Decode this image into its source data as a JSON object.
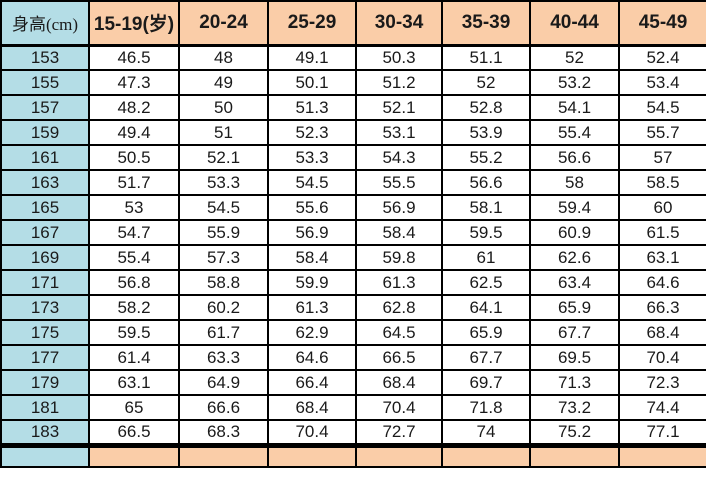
{
  "colors": {
    "header_bg": "#FACDA8",
    "height_col_bg": "#B4DDE6",
    "border": "#000000",
    "cell_bg": "#FFFFFF",
    "text": "#1A1A1A"
  },
  "table": {
    "header": [
      "身高(cm)",
      "15-19(岁)",
      "20-24",
      "25-29",
      "30-34",
      "35-39",
      "40-44",
      "45-49"
    ],
    "rows": [
      {
        "height": "153",
        "values": [
          "46.5",
          "48",
          "49.1",
          "50.3",
          "51.1",
          "52",
          "52.4"
        ]
      },
      {
        "height": "155",
        "values": [
          "47.3",
          "49",
          "50.1",
          "51.2",
          "52",
          "53.2",
          "53.4"
        ]
      },
      {
        "height": "157",
        "values": [
          "48.2",
          "50",
          "51.3",
          "52.1",
          "52.8",
          "54.1",
          "54.5"
        ]
      },
      {
        "height": "159",
        "values": [
          "49.4",
          "51",
          "52.3",
          "53.1",
          "53.9",
          "55.4",
          "55.7"
        ]
      },
      {
        "height": "161",
        "values": [
          "50.5",
          "52.1",
          "53.3",
          "54.3",
          "55.2",
          "56.6",
          "57"
        ]
      },
      {
        "height": "163",
        "values": [
          "51.7",
          "53.3",
          "54.5",
          "55.5",
          "56.6",
          "58",
          "58.5"
        ]
      },
      {
        "height": "165",
        "values": [
          "53",
          "54.5",
          "55.6",
          "56.9",
          "58.1",
          "59.4",
          "60"
        ]
      },
      {
        "height": "167",
        "values": [
          "54.7",
          "55.9",
          "56.9",
          "58.4",
          "59.5",
          "60.9",
          "61.5"
        ]
      },
      {
        "height": "169",
        "values": [
          "55.4",
          "57.3",
          "58.4",
          "59.8",
          "61",
          "62.6",
          "63.1"
        ]
      },
      {
        "height": "171",
        "values": [
          "56.8",
          "58.8",
          "59.9",
          "61.3",
          "62.5",
          "63.4",
          "64.6"
        ]
      },
      {
        "height": "173",
        "values": [
          "58.2",
          "60.2",
          "61.3",
          "62.8",
          "64.1",
          "65.9",
          "66.3"
        ]
      },
      {
        "height": "175",
        "values": [
          "59.5",
          "61.7",
          "62.9",
          "64.5",
          "65.9",
          "67.7",
          "68.4"
        ]
      },
      {
        "height": "177",
        "values": [
          "61.4",
          "63.3",
          "64.6",
          "66.5",
          "67.7",
          "69.5",
          "70.4"
        ]
      },
      {
        "height": "179",
        "values": [
          "63.1",
          "64.9",
          "66.4",
          "68.4",
          "69.7",
          "71.3",
          "72.3"
        ]
      },
      {
        "height": "181",
        "values": [
          "65",
          "66.6",
          "68.4",
          "70.4",
          "71.8",
          "73.2",
          "74.4"
        ]
      },
      {
        "height": "183",
        "values": [
          "66.5",
          "68.3",
          "70.4",
          "72.7",
          "74",
          "75.2",
          "77.1"
        ]
      }
    ],
    "partial_next_header_row_visible": true
  }
}
